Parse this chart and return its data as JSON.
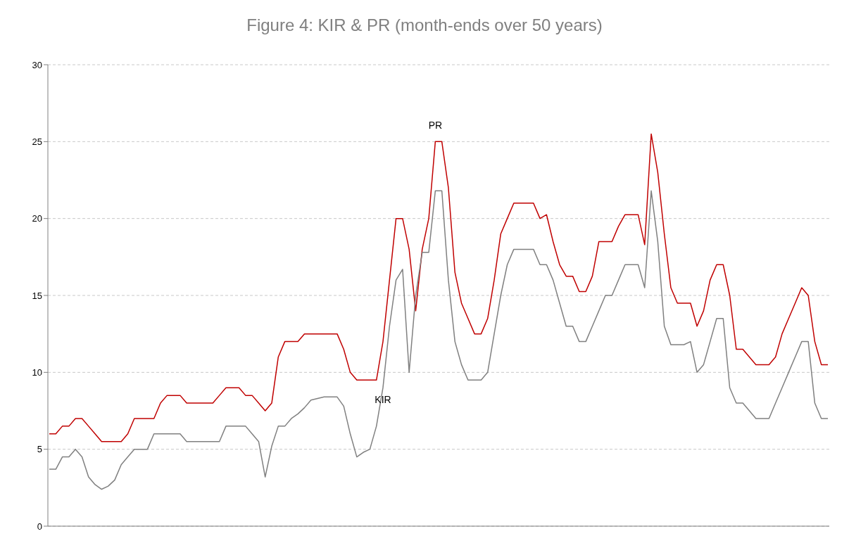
{
  "chart_data": {
    "type": "line",
    "title": "Figure 4: KIR & PR (month-ends over 50 years)",
    "categories": [
      null,
      null,
      null,
      null,
      null,
      null,
      null,
      null,
      null,
      null,
      null,
      null,
      null,
      null,
      null,
      null,
      null,
      null,
      null,
      null,
      null,
      null,
      null,
      null,
      null,
      null,
      null,
      null,
      null,
      null,
      null,
      null,
      null,
      null,
      null,
      null,
      null,
      null,
      null,
      null,
      null,
      null,
      null,
      null,
      null,
      null,
      null,
      null,
      null,
      null,
      null,
      null,
      null,
      null,
      null,
      null,
      null,
      null,
      null,
      null,
      null,
      null,
      null,
      null,
      null,
      null,
      null,
      null,
      null,
      null,
      null,
      null,
      null,
      null,
      null,
      null,
      null,
      null,
      null,
      null,
      null,
      null,
      null,
      null,
      null,
      null,
      null,
      null,
      null,
      null,
      null,
      null,
      null,
      null,
      null,
      null,
      null,
      null,
      null,
      null,
      null,
      null,
      null,
      null,
      null,
      null,
      null,
      null,
      null,
      null,
      null,
      null,
      null,
      null,
      null,
      null,
      null,
      null,
      null,
      null
    ],
    "series": [
      {
        "name": "PR",
        "color": "#c00000",
        "values": [
          6,
          6,
          6.5,
          6.5,
          7,
          7,
          6.5,
          6,
          5.5,
          5.5,
          5.5,
          5.5,
          6,
          7,
          7,
          7,
          7,
          8,
          8.5,
          8.5,
          8.5,
          8,
          8,
          8,
          8,
          8,
          8.5,
          9,
          9,
          9,
          8.5,
          8.5,
          8,
          7.5,
          8,
          11,
          12,
          12,
          12,
          12.5,
          12.5,
          12.5,
          12.5,
          12.5,
          12.5,
          11.5,
          10,
          9.5,
          9.5,
          9.5,
          9.5,
          12,
          16,
          20,
          20,
          18,
          14,
          18,
          20,
          25,
          25,
          22,
          16.5,
          14.5,
          13.5,
          12.5,
          12.5,
          13.5,
          16,
          19,
          20,
          21,
          21,
          21,
          21,
          20,
          20.25,
          18.5,
          17,
          16.25,
          16.25,
          15.25,
          15.25,
          16.25,
          18.5,
          18.5,
          18.5,
          19.5,
          20.25,
          20.25,
          20.25,
          18.3,
          25.5,
          23,
          19,
          15.5,
          14.5,
          14.5,
          14.5,
          13,
          14,
          16,
          17,
          17,
          15,
          11.5,
          11.5,
          11,
          10.5,
          10.5,
          10.5,
          11,
          12.5,
          13.5,
          14.5,
          15.5,
          15,
          12,
          10.5,
          10.5
        ]
      },
      {
        "name": "KIR",
        "color": "#808080",
        "values": [
          3.7,
          3.7,
          4.5,
          4.5,
          5,
          4.5,
          3.2,
          2.7,
          2.4,
          2.6,
          3,
          4,
          4.5,
          5,
          5,
          5,
          6,
          6,
          6,
          6,
          6,
          5.5,
          5.5,
          5.5,
          5.5,
          5.5,
          5.5,
          6.5,
          6.5,
          6.5,
          6.5,
          6,
          5.5,
          3.2,
          5.2,
          6.5,
          6.5,
          7,
          7.3,
          7.7,
          8.2,
          8.3,
          8.4,
          8.4,
          8.4,
          7.8,
          6,
          4.5,
          4.8,
          5,
          6.5,
          9,
          13,
          16,
          16.7,
          10,
          15,
          17.8,
          17.8,
          21.8,
          21.8,
          16,
          12,
          10.5,
          9.5,
          9.5,
          9.5,
          10,
          12.5,
          15,
          17,
          18,
          18,
          18,
          18,
          17,
          17,
          16,
          14.5,
          13,
          13,
          12,
          12,
          13,
          14,
          15,
          15,
          16,
          17,
          17,
          17,
          15.5,
          21.8,
          18.5,
          13,
          11.8,
          11.8,
          11.8,
          12,
          10,
          10.5,
          12,
          13.5,
          13.5,
          9,
          8,
          8,
          7.5,
          7,
          7,
          7,
          8,
          9,
          10,
          11,
          12,
          12,
          8,
          7,
          7
        ]
      }
    ],
    "ylim": [
      0,
      30
    ],
    "yticks": [
      0,
      5,
      10,
      15,
      20,
      25,
      30
    ],
    "grid": "y",
    "legend": false,
    "marker": "none",
    "line_style": "solid"
  }
}
